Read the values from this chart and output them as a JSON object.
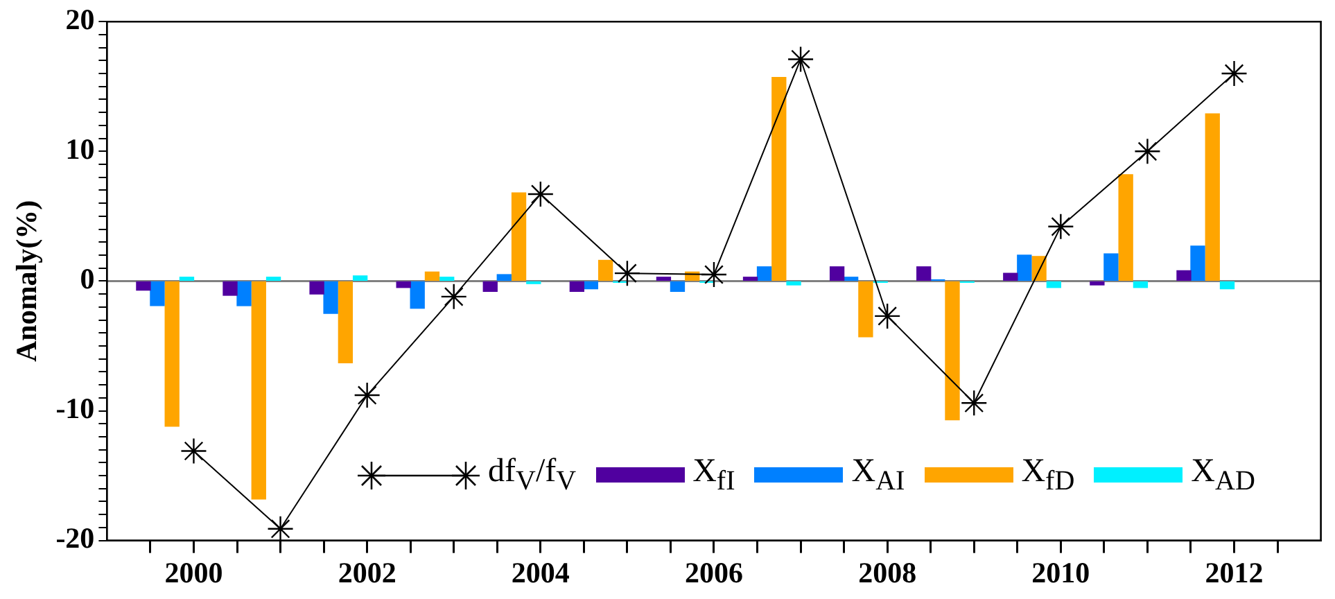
{
  "chart_data": {
    "type": "bar",
    "ylabel": "Anomaly(%)",
    "legend": "bottom",
    "marker": "cross",
    "line_style": "solid",
    "grid": false,
    "xlim": [
      1999,
      2013
    ],
    "ylim": [
      -20,
      20
    ],
    "xticks": [
      {
        "value": 1999.5,
        "label": null
      },
      {
        "value": 2000,
        "label": "2000"
      },
      {
        "value": 2000.5,
        "label": null
      },
      {
        "value": 2001,
        "label": null
      },
      {
        "value": 2001.5,
        "label": null
      },
      {
        "value": 2002,
        "label": "2002"
      },
      {
        "value": 2002.5,
        "label": null
      },
      {
        "value": 2003,
        "label": null
      },
      {
        "value": 2003.5,
        "label": null
      },
      {
        "value": 2004,
        "label": "2004"
      },
      {
        "value": 2004.5,
        "label": null
      },
      {
        "value": 2005,
        "label": null
      },
      {
        "value": 2005.5,
        "label": null
      },
      {
        "value": 2006,
        "label": "2006"
      },
      {
        "value": 2006.5,
        "label": null
      },
      {
        "value": 2007,
        "label": null
      },
      {
        "value": 2007.5,
        "label": null
      },
      {
        "value": 2008,
        "label": "2008"
      },
      {
        "value": 2008.5,
        "label": null
      },
      {
        "value": 2009,
        "label": null
      },
      {
        "value": 2009.5,
        "label": null
      },
      {
        "value": 2010,
        "label": "2010"
      },
      {
        "value": 2010.5,
        "label": null
      },
      {
        "value": 2011,
        "label": null
      },
      {
        "value": 2011.5,
        "label": null
      },
      {
        "value": 2012,
        "label": "2012"
      },
      {
        "value": 2012.5,
        "label": null
      }
    ],
    "yticks": [
      -20,
      {
        "value": -19,
        "label": null
      },
      {
        "value": -18,
        "label": null
      },
      {
        "value": -17,
        "label": null
      },
      {
        "value": -16,
        "label": null
      },
      {
        "value": -15,
        "label": null
      },
      {
        "value": -14,
        "label": null
      },
      {
        "value": -13,
        "label": null
      },
      {
        "value": -12,
        "label": null
      },
      {
        "value": -11,
        "label": null
      },
      -10,
      {
        "value": -9,
        "label": null
      },
      {
        "value": -8,
        "label": null
      },
      {
        "value": -7,
        "label": null
      },
      {
        "value": -6,
        "label": null
      },
      {
        "value": -5,
        "label": null
      },
      {
        "value": -4,
        "label": null
      },
      {
        "value": -3,
        "label": null
      },
      {
        "value": -2,
        "label": null
      },
      {
        "value": -1,
        "label": null
      },
      0,
      {
        "value": 1,
        "label": null
      },
      {
        "value": 2,
        "label": null
      },
      {
        "value": 3,
        "label": null
      },
      {
        "value": 4,
        "label": null
      },
      {
        "value": 5,
        "label": null
      },
      {
        "value": 6,
        "label": null
      },
      {
        "value": 7,
        "label": null
      },
      {
        "value": 8,
        "label": null
      },
      {
        "value": 9,
        "label": null
      },
      10,
      {
        "value": 11,
        "label": null
      },
      {
        "value": 12,
        "label": null
      },
      {
        "value": 13,
        "label": null
      },
      {
        "value": 14,
        "label": null
      },
      {
        "value": 15,
        "label": null
      },
      {
        "value": 16,
        "label": null
      },
      {
        "value": 17,
        "label": null
      },
      {
        "value": 18,
        "label": null
      },
      {
        "value": 19,
        "label": null
      },
      20
    ],
    "ref_lines": [
      {
        "axis": "y",
        "value": 0,
        "color": "#808080"
      }
    ],
    "series": [
      {
        "name": "df$_{V}$/f$_{V}$",
        "type": "line",
        "color": "#000000",
        "x": [
          2000,
          2001,
          2002,
          2003,
          2004,
          2005,
          2006,
          2007,
          2008,
          2009,
          2010,
          2011,
          2012
        ],
        "values": [
          -13.1,
          -19.1,
          -8.8,
          -1.2,
          6.7,
          0.6,
          0.5,
          17.1,
          -2.7,
          -9.4,
          4.2,
          10,
          16
        ]
      },
      {
        "name": "X$_{fI}$",
        "color": "#50009f",
        "x": [
          1999.42,
          2000.42,
          2001.42,
          2002.42,
          2003.42,
          2004.42,
          2005.42,
          2006.42,
          2007.42,
          2008.42,
          2009.42,
          2010.42,
          2011.42
        ],
        "values": [
          -0.7,
          -1.1,
          -1,
          -0.5,
          -0.8,
          -0.8,
          0.3,
          0.3,
          1.1,
          1.1,
          0.6,
          -0.3,
          0.8
        ]
      },
      {
        "name": "X$_{AI}$",
        "color": "#0080ff",
        "x": [
          1999.58,
          2000.58,
          2001.58,
          2002.58,
          2003.58,
          2004.58,
          2005.58,
          2006.58,
          2007.58,
          2008.58,
          2009.58,
          2010.58,
          2011.58
        ],
        "values": [
          -1.9,
          -1.9,
          -2.5,
          -2.1,
          0.5,
          -0.6,
          -0.8,
          1.1,
          0.3,
          0.1,
          2,
          2.1,
          2.7
        ]
      },
      {
        "name": "X$_{fD}$",
        "color": "#ffa500",
        "x": [
          1999.75,
          2000.75,
          2001.75,
          2002.75,
          2003.75,
          2004.75,
          2005.75,
          2006.75,
          2007.75,
          2008.75,
          2009.75,
          2010.75,
          2011.75
        ],
        "values": [
          -11.2,
          -16.8,
          -6.3,
          0.7,
          6.8,
          1.6,
          0.7,
          15.7,
          -4.3,
          -10.7,
          1.9,
          8.2,
          12.9
        ]
      },
      {
        "name": "X$_{AD}$",
        "color": "#00f0ff",
        "x": [
          1999.92,
          2000.92,
          2001.92,
          2002.92,
          2003.92,
          2004.92,
          2005.92,
          2006.92,
          2007.92,
          2008.92,
          2009.92,
          2010.92,
          2011.92
        ],
        "values": [
          0.3,
          0.3,
          0.4,
          0.3,
          -0.2,
          -0.1,
          -0.1,
          -0.3,
          -0.1,
          -0.1,
          -0.5,
          -0.5,
          -0.6
        ]
      }
    ]
  }
}
